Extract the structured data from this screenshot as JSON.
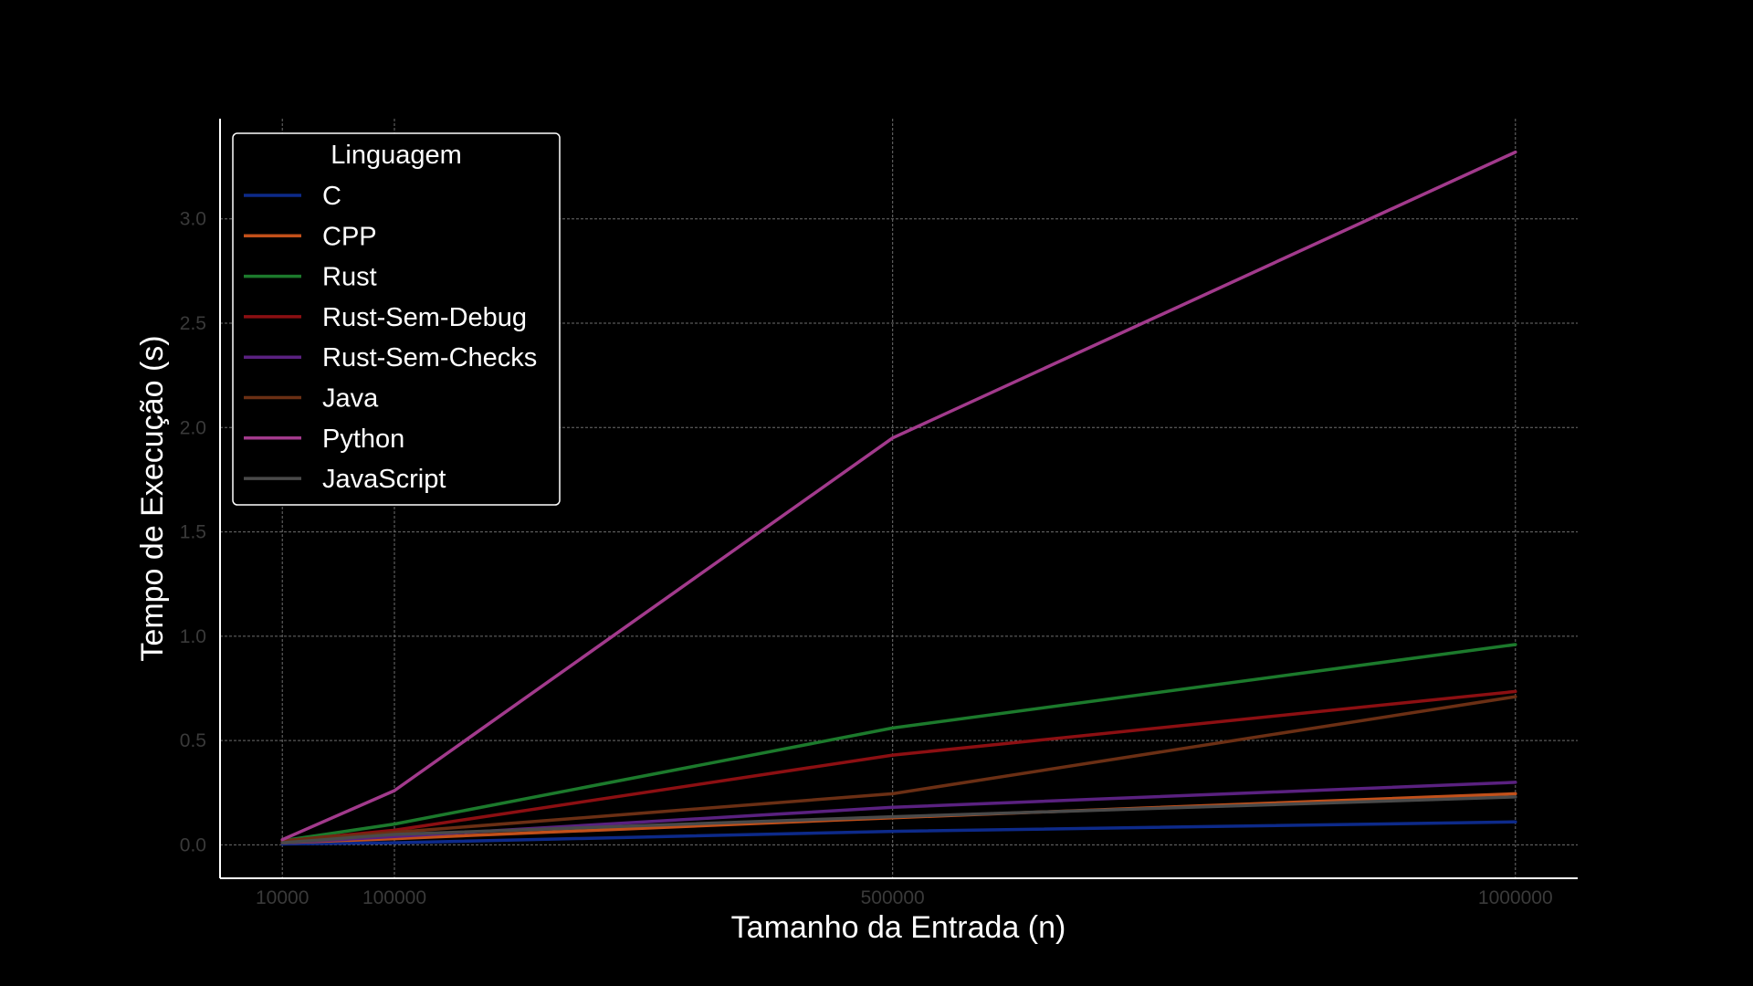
{
  "chart_data": {
    "type": "line",
    "title": "",
    "xlabel": "Tamanho da Entrada (n)",
    "ylabel": "Tempo de Execução (s)",
    "x": [
      10000,
      100000,
      500000,
      1000000
    ],
    "x_tick_labels": [
      "10000",
      "100000",
      "500000",
      "1000000"
    ],
    "xlim": [
      -40000,
      1050000
    ],
    "y_ticks": [
      0.0,
      0.5,
      1.0,
      1.5,
      2.0,
      2.5,
      3.0
    ],
    "y_tick_labels": [
      "0.0",
      "0.5",
      "1.0",
      "1.5",
      "2.0",
      "2.5",
      "3.0"
    ],
    "ylim": [
      -0.16,
      3.48
    ],
    "grid": true,
    "legend": {
      "title": "Linguagem",
      "position": "top-left"
    },
    "series": [
      {
        "name": "C",
        "color": "#0d2a8a",
        "values": [
          0.004,
          0.01,
          0.065,
          0.11
        ]
      },
      {
        "name": "CPP",
        "color": "#c2501a",
        "values": [
          0.01,
          0.03,
          0.13,
          0.245
        ]
      },
      {
        "name": "Rust",
        "color": "#1c7a2c",
        "values": [
          0.02,
          0.1,
          0.56,
          0.96
        ]
      },
      {
        "name": "Rust-Sem-Debug",
        "color": "#8c0f12",
        "values": [
          0.018,
          0.07,
          0.43,
          0.735
        ]
      },
      {
        "name": "Rust-Sem-Checks",
        "color": "#5a2180",
        "values": [
          0.01,
          0.04,
          0.18,
          0.3
        ]
      },
      {
        "name": "Java",
        "color": "#6b2f14",
        "values": [
          0.02,
          0.06,
          0.245,
          0.71
        ]
      },
      {
        "name": "Python",
        "color": "#a23a8c",
        "values": [
          0.025,
          0.26,
          1.95,
          3.32
        ]
      },
      {
        "name": "JavaScript",
        "color": "#4a4a4a",
        "values": [
          0.01,
          0.05,
          0.135,
          0.23
        ]
      }
    ]
  }
}
